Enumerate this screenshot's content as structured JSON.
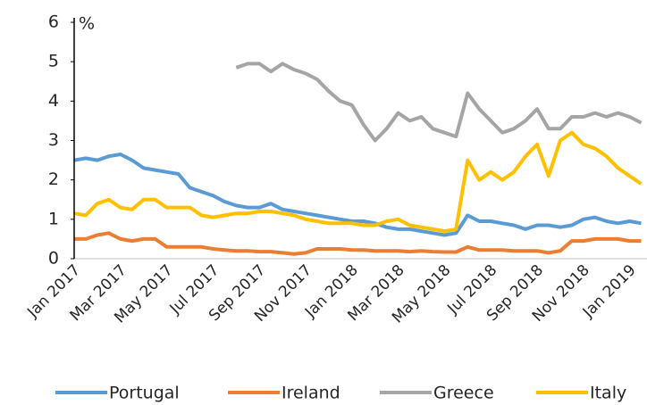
{
  "chart_data": {
    "type": "line",
    "annotation": "%",
    "x": [
      "Jan 2017",
      null,
      null,
      null,
      "Mar 2017",
      null,
      null,
      null,
      "May 2017",
      null,
      null,
      null,
      "Jul 2017",
      null,
      null,
      null,
      "Sep 2017",
      null,
      null,
      null,
      "Nov 2017",
      null,
      null,
      null,
      "Jan 2018",
      null,
      null,
      null,
      "Mar 2018",
      null,
      null,
      null,
      "May 2018",
      null,
      null,
      null,
      "Jul 2018",
      null,
      null,
      null,
      "Sep 2018",
      null,
      null,
      null,
      "Nov 2018",
      null,
      null,
      null,
      "Jan 2019",
      null
    ],
    "series": [
      {
        "name": "Portugal",
        "color": "#5b9bd5",
        "values": [
          2.5,
          2.55,
          2.5,
          2.6,
          2.65,
          2.5,
          2.3,
          2.25,
          2.2,
          2.15,
          1.8,
          1.7,
          1.6,
          1.45,
          1.35,
          1.3,
          1.3,
          1.4,
          1.25,
          1.2,
          1.15,
          1.1,
          1.05,
          1.0,
          0.95,
          0.95,
          0.9,
          0.8,
          0.75,
          0.75,
          0.7,
          0.65,
          0.6,
          0.65,
          1.1,
          0.95,
          0.95,
          0.9,
          0.85,
          0.75,
          0.85,
          0.85,
          0.8,
          0.85,
          1.0,
          1.05,
          0.95,
          0.9,
          0.95,
          0.9
        ]
      },
      {
        "name": "Ireland",
        "color": "#ed7d31",
        "values": [
          0.5,
          0.5,
          0.6,
          0.65,
          0.5,
          0.45,
          0.5,
          0.5,
          0.3,
          0.3,
          0.3,
          0.3,
          0.25,
          0.22,
          0.2,
          0.2,
          0.18,
          0.18,
          0.15,
          0.12,
          0.15,
          0.25,
          0.25,
          0.25,
          0.22,
          0.22,
          0.2,
          0.2,
          0.2,
          0.18,
          0.2,
          0.18,
          0.17,
          0.17,
          0.3,
          0.22,
          0.22,
          0.22,
          0.2,
          0.2,
          0.2,
          0.15,
          0.2,
          0.45,
          0.45,
          0.5,
          0.5,
          0.5,
          0.45,
          0.45
        ]
      },
      {
        "name": "Greece",
        "color": "#a5a5a5",
        "values": [
          null,
          null,
          null,
          null,
          null,
          null,
          null,
          null,
          null,
          null,
          null,
          null,
          null,
          null,
          4.85,
          4.95,
          4.95,
          4.75,
          4.95,
          4.8,
          4.7,
          4.55,
          4.25,
          4.0,
          3.9,
          3.4,
          3.0,
          3.3,
          3.7,
          3.5,
          3.6,
          3.3,
          3.2,
          3.1,
          4.2,
          3.8,
          3.5,
          3.2,
          3.3,
          3.5,
          3.8,
          3.3,
          3.3,
          3.6,
          3.6,
          3.7,
          3.6,
          3.7,
          3.6,
          3.45
        ]
      },
      {
        "name": "Italy",
        "color": "#ffc000",
        "values": [
          1.15,
          1.1,
          1.4,
          1.5,
          1.3,
          1.25,
          1.5,
          1.5,
          1.3,
          1.3,
          1.3,
          1.1,
          1.05,
          1.1,
          1.15,
          1.15,
          1.2,
          1.2,
          1.15,
          1.1,
          1.0,
          0.95,
          0.9,
          0.9,
          0.9,
          0.85,
          0.85,
          0.95,
          1.0,
          0.85,
          0.8,
          0.75,
          0.7,
          0.75,
          2.5,
          2.0,
          2.2,
          2.0,
          2.2,
          2.6,
          2.9,
          2.1,
          3.0,
          3.2,
          2.9,
          2.8,
          2.6,
          2.3,
          2.1,
          1.9
        ]
      }
    ],
    "ylim": [
      0,
      6
    ],
    "yticks": [
      0,
      1,
      2,
      3,
      4,
      5,
      6
    ],
    "grid": false,
    "legend": "bottom"
  }
}
